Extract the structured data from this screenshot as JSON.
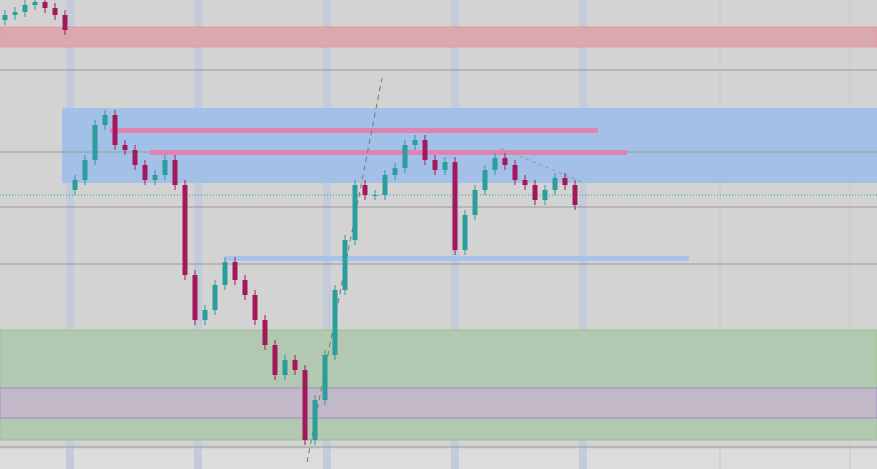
{
  "chart_data": {
    "type": "candlestick",
    "categories": [
      null,
      null,
      null,
      null,
      null,
      null,
      null,
      null,
      null,
      null,
      null,
      null,
      null,
      null,
      null,
      null,
      null,
      null,
      null,
      null,
      null,
      null,
      null,
      null,
      null,
      null,
      null,
      null,
      null,
      null,
      null,
      null,
      null,
      null,
      null,
      null,
      null,
      null,
      null,
      null,
      null,
      null,
      null,
      null,
      null,
      null,
      null,
      null,
      null,
      null,
      null,
      null,
      null,
      null,
      null,
      null,
      null,
      null
    ],
    "open": [
      449,
      454,
      457,
      464,
      467,
      461,
      454,
      279,
      289,
      309,
      344,
      354,
      324,
      319,
      304,
      289,
      294,
      309,
      284,
      194,
      149,
      159,
      184,
      207,
      189,
      174,
      149,
      124,
      94,
      109,
      99,
      29,
      69,
      114,
      179,
      229,
      284,
      274,
      274,
      294,
      301,
      324,
      329,
      309,
      299,
      307,
      219,
      254,
      279,
      299,
      311,
      304,
      289,
      284,
      269,
      279,
      291,
      284
    ],
    "high": [
      459,
      462,
      469,
      472,
      472,
      466,
      459,
      294,
      314,
      349,
      359,
      359,
      329,
      324,
      309,
      299,
      314,
      314,
      289,
      199,
      164,
      189,
      212,
      212,
      194,
      179,
      154,
      129,
      114,
      114,
      104,
      74,
      119,
      184,
      234,
      289,
      289,
      279,
      299,
      306,
      329,
      334,
      334,
      314,
      312,
      312,
      259,
      284,
      304,
      316,
      316,
      309,
      294,
      289,
      284,
      296,
      296,
      289
    ],
    "low": [
      444,
      449,
      452,
      459,
      456,
      449,
      434,
      274,
      284,
      304,
      339,
      319,
      314,
      299,
      284,
      284,
      289,
      279,
      189,
      144,
      144,
      154,
      179,
      184,
      169,
      144,
      119,
      89,
      89,
      94,
      24,
      24,
      64,
      109,
      174,
      224,
      269,
      269,
      269,
      289,
      296,
      319,
      304,
      294,
      294,
      214,
      214,
      249,
      274,
      294,
      299,
      284,
      279,
      264,
      264,
      274,
      279,
      259
    ],
    "close": [
      454,
      457,
      464,
      467,
      461,
      454,
      439,
      289,
      309,
      344,
      354,
      324,
      319,
      304,
      289,
      294,
      309,
      284,
      194,
      149,
      159,
      184,
      207,
      189,
      174,
      149,
      124,
      94,
      109,
      99,
      29,
      69,
      114,
      179,
      229,
      284,
      274,
      274,
      294,
      301,
      324,
      329,
      309,
      299,
      307,
      219,
      254,
      279,
      299,
      311,
      304,
      289,
      284,
      269,
      279,
      291,
      284,
      264
    ],
    "up_color": "#2a9d9c",
    "down_color": "#a3175b",
    "ylim": [
      0,
      469
    ]
  }
}
